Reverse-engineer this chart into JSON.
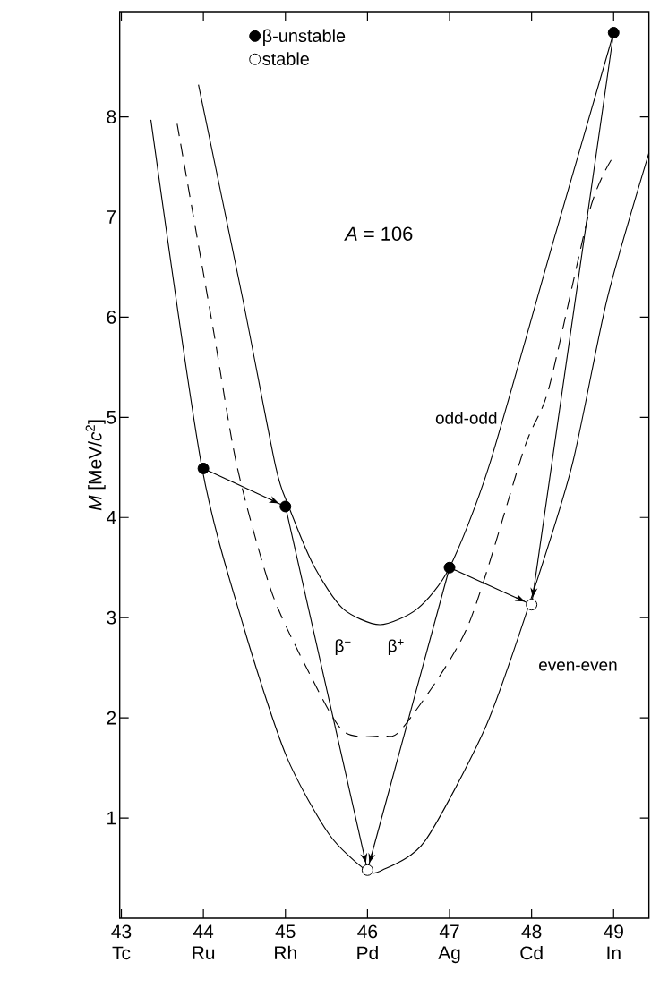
{
  "chart_data": {
    "type": "line",
    "xlim": [
      42.98,
      49.43
    ],
    "ylim": [
      0,
      9.05
    ],
    "xticks": [
      {
        "value": 43,
        "label": "43 Tc"
      },
      {
        "value": 44,
        "label": "44 Ru"
      },
      {
        "value": 45,
        "label": "45 Rh"
      },
      {
        "value": 46,
        "label": "46 Pd"
      },
      {
        "value": 47,
        "label": "47 Ag"
      },
      {
        "value": 48,
        "label": "48 Cd"
      },
      {
        "value": 49,
        "label": "49 In"
      }
    ],
    "yticks": [
      1,
      2,
      3,
      4,
      5,
      6,
      7,
      8
    ],
    "ylabel": "*M* [MeV/*c*$^{2}$]",
    "legend": "top left",
    "series": [
      {
        "color": "#000000",
        "line_style": "solid",
        "x": [
          43.94,
          44.48,
          44.88,
          45.04,
          45.35,
          45.7,
          46.15,
          46.61,
          47.0,
          47.48,
          48.27,
          49.0
        ],
        "values": [
          8.32,
          6.18,
          4.51,
          4.11,
          3.51,
          3.09,
          2.93,
          3.09,
          3.5,
          4.51,
          6.77,
          8.84
        ]
      },
      {
        "color": "#000000",
        "line_style": "solid",
        "x": [
          43.36,
          43.98,
          44.49,
          45.01,
          45.53,
          45.98,
          46.18,
          46.7,
          47.44,
          47.97,
          48.49,
          48.92,
          49.43
        ],
        "values": [
          7.97,
          4.51,
          2.91,
          1.62,
          0.84,
          0.48,
          0.48,
          0.77,
          1.91,
          3.13,
          4.51,
          6.18,
          7.64
        ]
      },
      {
        "color": "#000000",
        "line_style": "dashed",
        "x": [
          43.68,
          44.12,
          44.41,
          44.83,
          45.27,
          45.7,
          46.18,
          46.44,
          47.22,
          47.91,
          48.21,
          48.71,
          48.97
        ],
        "values": [
          7.93,
          5.88,
          4.51,
          3.26,
          2.48,
          1.87,
          1.82,
          1.91,
          2.91,
          4.69,
          5.29,
          7.07,
          7.57
        ]
      },
      {
        "color": "#000000",
        "line_style": "solid",
        "x": [
          44,
          45
        ],
        "values": [
          4.49,
          4.11
        ]
      },
      {
        "color": "#000000",
        "line_style": "solid",
        "x": [
          45,
          46
        ],
        "values": [
          4.11,
          0.48
        ]
      },
      {
        "color": "#000000",
        "line_style": "solid",
        "x": [
          47,
          46
        ],
        "values": [
          3.5,
          0.48
        ]
      },
      {
        "color": "#000000",
        "line_style": "solid",
        "x": [
          47,
          48
        ],
        "values": [
          3.5,
          3.13
        ]
      },
      {
        "color": "#000000",
        "line_style": "solid",
        "x": [
          49,
          48
        ],
        "values": [
          8.84,
          3.13
        ]
      },
      {
        "type": "scatter",
        "name": "β-unstable",
        "color": "#000000",
        "marker": "circle",
        "x": [
          44,
          45,
          47,
          49
        ],
        "values": [
          4.49,
          4.11,
          3.5,
          8.84
        ]
      },
      {
        "type": "scatter",
        "name": "stable",
        "color": "#ffffff",
        "marker": "circle",
        "x": [
          46,
          48
        ],
        "values": [
          0.48,
          3.13
        ]
      }
    ],
    "annotations": [
      "*A* = 106",
      "odd-odd",
      "even-even",
      "β$^{−}$",
      "β$^{+}$"
    ]
  }
}
